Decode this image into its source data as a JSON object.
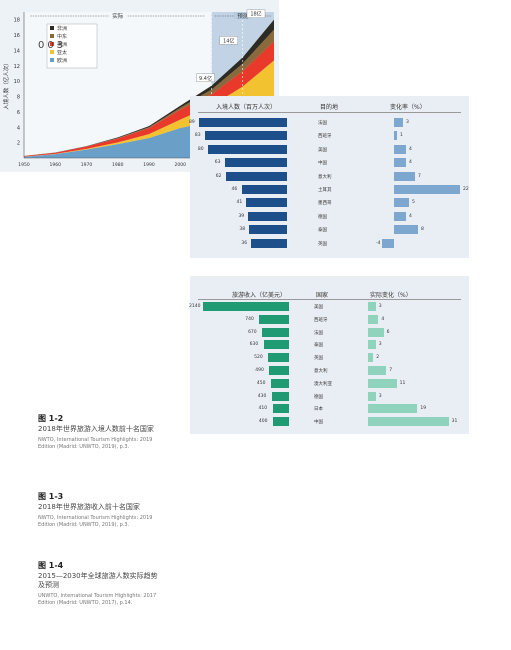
{
  "page_number": "003",
  "arrivals": {
    "headers": [
      "入境人数（百万人次）",
      "目的地",
      "变化率（%）"
    ],
    "rows": [
      {
        "value": 89,
        "label": "89",
        "country": "法国",
        "change": 3,
        "change_label": "3"
      },
      {
        "value": 83,
        "label": "83",
        "country": "西班牙",
        "change": 1,
        "change_label": "1"
      },
      {
        "value": 80,
        "label": "80",
        "country": "美国",
        "change": 4,
        "change_label": "4"
      },
      {
        "value": 63,
        "label": "63",
        "country": "中国",
        "change": 4,
        "change_label": "4"
      },
      {
        "value": 62,
        "label": "62",
        "country": "意大利",
        "change": 7,
        "change_label": "7"
      },
      {
        "value": 46,
        "label": "46",
        "country": "土耳其",
        "change": 22,
        "change_label": "22"
      },
      {
        "value": 41,
        "label": "41",
        "country": "墨西哥",
        "change": 5,
        "change_label": "5"
      },
      {
        "value": 39,
        "label": "39",
        "country": "德国",
        "change": 4,
        "change_label": "4"
      },
      {
        "value": 38,
        "label": "38",
        "country": "泰国",
        "change": 8,
        "change_label": "8"
      },
      {
        "value": 36,
        "label": "36",
        "country": "英国",
        "change": -4,
        "change_label": "-4"
      }
    ]
  },
  "receipts": {
    "headers": [
      "旅游收入（亿美元）",
      "国家",
      "实际变化（%）"
    ],
    "rows": [
      {
        "value": 2140,
        "label": "2140",
        "country": "美国",
        "change": 3,
        "change_label": "3"
      },
      {
        "value": 740,
        "label": "740",
        "country": "西班牙",
        "change": 4,
        "change_label": "4"
      },
      {
        "value": 670,
        "label": "670",
        "country": "法国",
        "change": 6,
        "change_label": "6"
      },
      {
        "value": 630,
        "label": "630",
        "country": "泰国",
        "change": 3,
        "change_label": "3"
      },
      {
        "value": 520,
        "label": "520",
        "country": "英国",
        "change": 2,
        "change_label": "2"
      },
      {
        "value": 490,
        "label": "490",
        "country": "意大利",
        "change": 7,
        "change_label": "7"
      },
      {
        "value": 450,
        "label": "450",
        "country": "澳大利亚",
        "change": 11,
        "change_label": "11"
      },
      {
        "value": 430,
        "label": "430",
        "country": "德国",
        "change": 3,
        "change_label": "3"
      },
      {
        "value": 410,
        "label": "410",
        "country": "日本",
        "change": 19,
        "change_label": "19"
      },
      {
        "value": 400,
        "label": "400",
        "country": "中国",
        "change": 31,
        "change_label": "31"
      }
    ]
  },
  "chart_data": {
    "type": "area",
    "ylabel": "入境人数（亿人次）",
    "x_ticks": [
      "1950",
      "1960",
      "1970",
      "1980",
      "1990",
      "2000",
      "2010",
      "2020",
      "2030"
    ],
    "y_ticks": [
      "2",
      "4",
      "6",
      "8",
      "10",
      "12",
      "14",
      "16",
      "18"
    ],
    "xlim": [
      1950,
      2030
    ],
    "ylim": [
      0,
      19
    ],
    "period_actual": "实际",
    "period_forecast": "预测",
    "annotations": [
      {
        "text": "9.4亿",
        "x": 2010,
        "y": 9.4
      },
      {
        "text": "14亿",
        "x": 2020,
        "y": 14
      },
      {
        "text": "18亿",
        "x": 2030,
        "y": 18
      }
    ],
    "legend_position": "top-left",
    "x": [
      1950,
      1960,
      1970,
      1980,
      1990,
      2000,
      2010,
      2020,
      2030
    ],
    "series": [
      {
        "name": "欧洲",
        "color": "#6a9fc8",
        "values": [
          0.17,
          0.5,
          1.1,
          1.8,
          2.6,
          3.9,
          4.8,
          5.8,
          7.4
        ]
      },
      {
        "name": "亚太",
        "color": "#f2c230",
        "values": [
          0.01,
          0.03,
          0.08,
          0.23,
          0.5,
          1.1,
          2.0,
          3.5,
          5.3
        ]
      },
      {
        "name": "美洲",
        "color": "#e8392b",
        "values": [
          0.08,
          0.16,
          0.32,
          0.5,
          0.8,
          1.3,
          1.5,
          2.0,
          2.5
        ]
      },
      {
        "name": "中东",
        "color": "#8a6a3c",
        "values": [
          0.01,
          0.01,
          0.02,
          0.08,
          0.1,
          0.24,
          0.6,
          1.0,
          1.5
        ]
      },
      {
        "name": "非洲",
        "color": "#2e2a24",
        "values": [
          0.005,
          0.01,
          0.02,
          0.07,
          0.15,
          0.26,
          0.5,
          0.8,
          1.3
        ]
      }
    ]
  },
  "captions": [
    {
      "title": "图 1-2",
      "text": "2018年世界旅游入境人数前十名国家",
      "source": "NWTO, International Tourism Highlights: 2019 Edition (Madrid: UNWTO, 2019), p.3."
    },
    {
      "title": "图 1-3",
      "text": "2018年世界旅游收入前十名国家",
      "source": "NWTO, International Tourism Highlights: 2019 Edition (Madrid: UNWTO, 2019), p.3."
    },
    {
      "title": "图 1-4",
      "text": "2015—2030年全球旅游人数实际趋势及预测",
      "source": "UNWTO, International Tourism Highlights: 2017 Edition (Madrid: UNWTO, 2017), p.14."
    }
  ]
}
